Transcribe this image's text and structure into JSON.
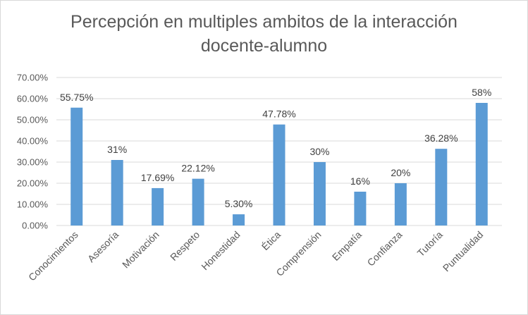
{
  "chart_data": {
    "type": "bar",
    "title_line1": "Percepción en multiples ambitos de la interacción",
    "title_line2": "docente-alumno",
    "categories": [
      "Conocimientos",
      "Asesoría",
      "Motivación",
      "Respeto",
      "Honestidad",
      "Ética",
      "Comprensión",
      "Empatía",
      "Confianza",
      "Tutoría",
      "Puntualidad"
    ],
    "values": [
      55.75,
      31,
      17.69,
      22.12,
      5.3,
      47.78,
      30,
      16,
      20,
      36.28,
      58
    ],
    "data_labels": [
      "55.75%",
      "31%",
      "17.69%",
      "22.12%",
      "5.30%",
      "47.78%",
      "30%",
      "16%",
      "20%",
      "36.28%",
      "58%"
    ],
    "y_ticks": [
      "0.00%",
      "10.00%",
      "20.00%",
      "30.00%",
      "40.00%",
      "50.00%",
      "60.00%",
      "70.00%"
    ],
    "ylim": [
      0,
      70
    ],
    "grid": true,
    "legend": "none",
    "bar_color": "#5b9bd5",
    "grid_color": "#d9d9d9"
  }
}
